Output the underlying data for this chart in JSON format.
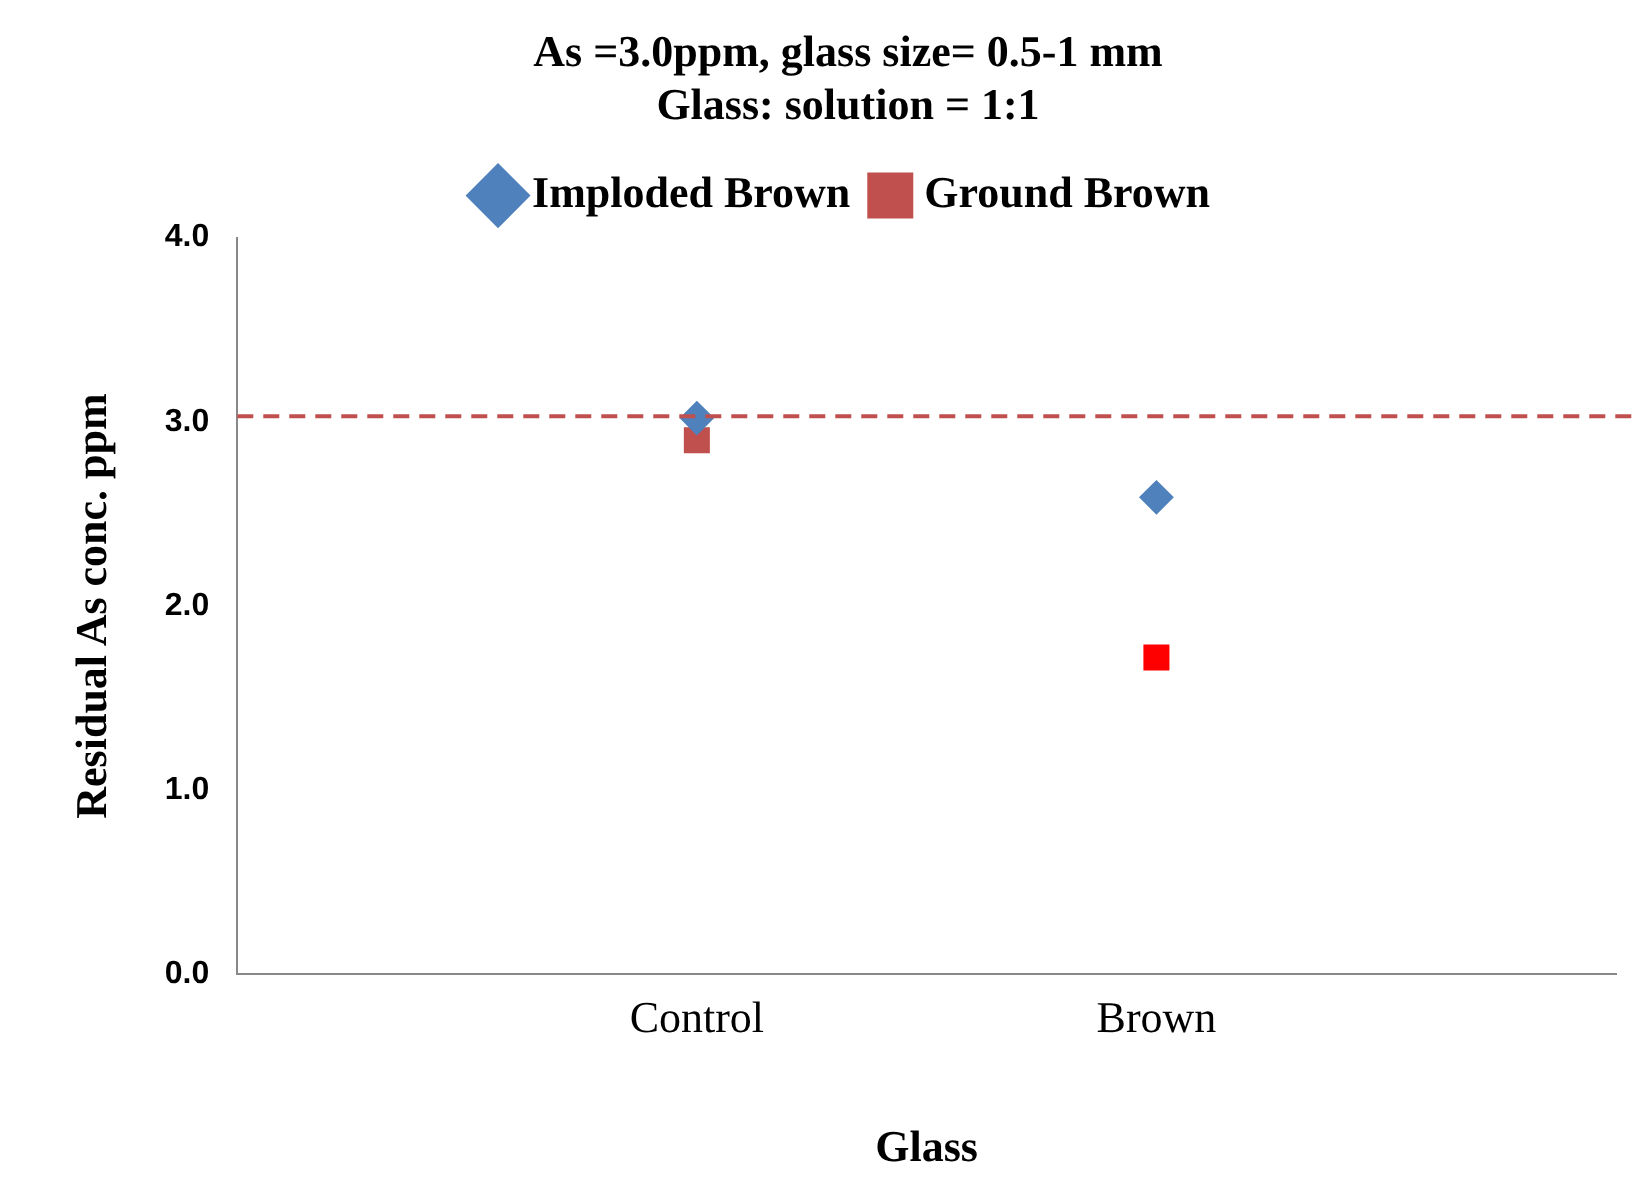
{
  "chart_data": {
    "type": "scatter",
    "title": [
      "As =3.0ppm, glass size= 0.5-1 mm",
      "Glass: solution = 1:1"
    ],
    "xlabel": "Glass",
    "ylabel": "Residual As conc. ppm",
    "categories": [
      null,
      "Control",
      "Brown",
      null
    ],
    "series": [
      {
        "name": "Imploded Brown",
        "color": "#4f81bd",
        "marker": "diamond",
        "values": [
          null,
          3.02,
          2.59,
          null
        ]
      },
      {
        "name": "Ground Brown",
        "color": "#c0504d",
        "colors": [
          null,
          "#c0504d",
          "#ff0000",
          null
        ],
        "marker": "square",
        "values": [
          null,
          2.9,
          1.72,
          null
        ]
      }
    ],
    "ylim": [
      0,
      4
    ],
    "yticks": [
      {
        "value": 0,
        "label": "0.0"
      },
      {
        "value": 1,
        "label": "1.0"
      },
      {
        "value": 2,
        "label": "2.0"
      },
      {
        "value": 3,
        "label": "3.0"
      },
      {
        "value": 4,
        "label": "4.0"
      }
    ],
    "ref_lines": [
      {
        "axis": "y",
        "value": 3.03,
        "color": "#c0504d",
        "line_style": "dashed"
      }
    ],
    "grid": false,
    "legend": "top"
  }
}
